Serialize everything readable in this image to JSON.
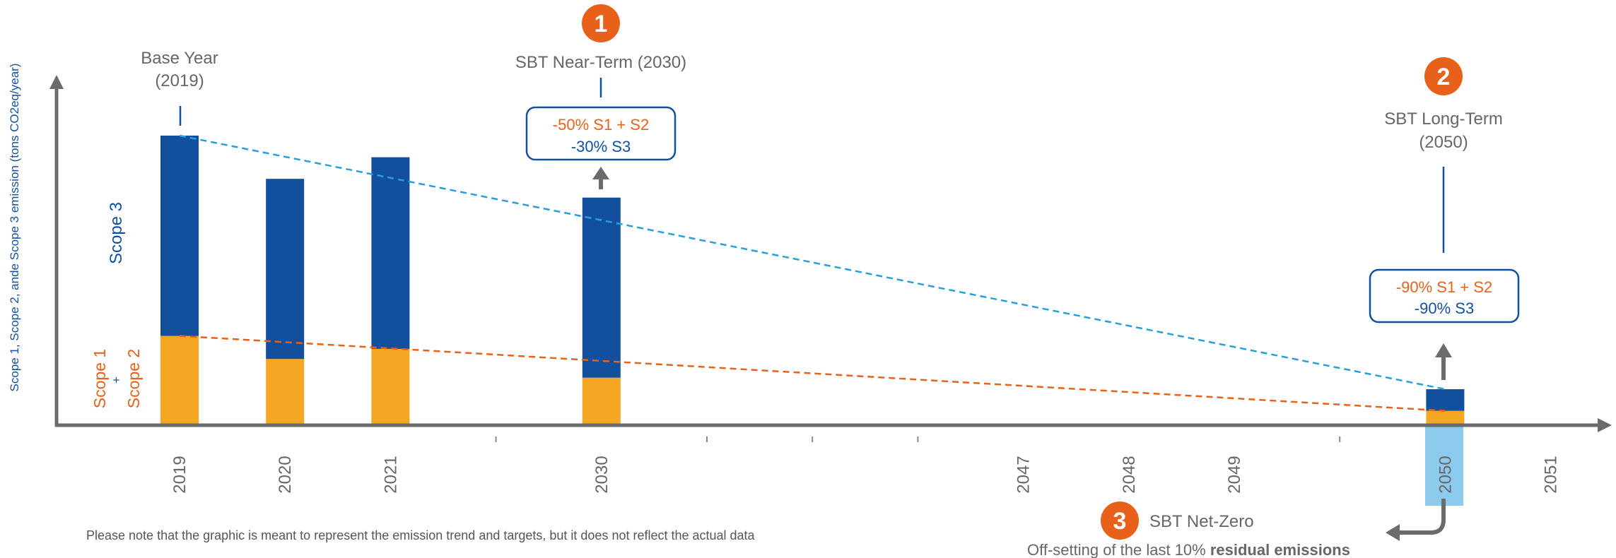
{
  "chart_data": {
    "type": "bar",
    "ylabel": "Scope 1, Scope 2, ande Scope 3 emission (tons CO2eq/year)",
    "x_ticks": [
      "2019",
      "2020",
      "2021",
      "",
      "2030",
      "",
      "",
      "",
      "2047",
      "2048",
      "2049",
      "",
      "2050",
      "2051"
    ],
    "categories": [
      "2019",
      "2020",
      "2021",
      "2030",
      "2050"
    ],
    "ylim": [
      0,
      100
    ],
    "series": [
      {
        "name": "Scope 1 + Scope 2",
        "label_lines": [
          "Scope 1",
          "+",
          "Scope 2"
        ],
        "color": "#F5A623",
        "values": [
          30.5,
          22.5,
          26,
          16,
          4.5
        ]
      },
      {
        "name": "Scope 3",
        "label_lines": [
          "Scope 3"
        ],
        "color": "#12509E",
        "values": [
          69.5,
          62.5,
          66.5,
          62.5,
          7.5
        ]
      }
    ],
    "trend_lines": [
      {
        "series": "Scope 3",
        "color": "#2A9FD6",
        "from": [
          "2019",
          100
        ],
        "to": [
          "2050",
          12
        ]
      },
      {
        "series": "Scope 1 + Scope 2",
        "color": "#E8611A",
        "from": [
          "2019",
          30.5
        ],
        "to": [
          "2050",
          4.5
        ]
      }
    ],
    "highlight_tick": "2050"
  },
  "annotations": {
    "base_year": {
      "line1": "Base Year",
      "line2": "(2019)"
    },
    "near_term": {
      "number": "1",
      "title": "SBT Near-Term (2030)",
      "line_s12": "-50% S1 + S2",
      "line_s3": "-30% S3"
    },
    "long_term": {
      "number": "2",
      "title_line1": "SBT Long-Term",
      "title_line2": "(2050)",
      "line_s12": "-90% S1 + S2",
      "line_s3": "-90% S3"
    },
    "net_zero": {
      "number": "3",
      "title": "SBT Net-Zero",
      "subtitle_plain": "Off-setting of the last 10% ",
      "subtitle_bold": "residual emissions"
    }
  },
  "note": "Please note that the graphic is meant to represent the emission trend and targets, but it does not reflect the actual data",
  "colors": {
    "scope3": "#12509E",
    "scope12": "#F5A623",
    "accent_orange": "#E8611A",
    "trend_blue": "#2A9FD6",
    "axis": "#6B6B6B",
    "highlight": "#8CCAEE",
    "text_gray": "#666666"
  }
}
